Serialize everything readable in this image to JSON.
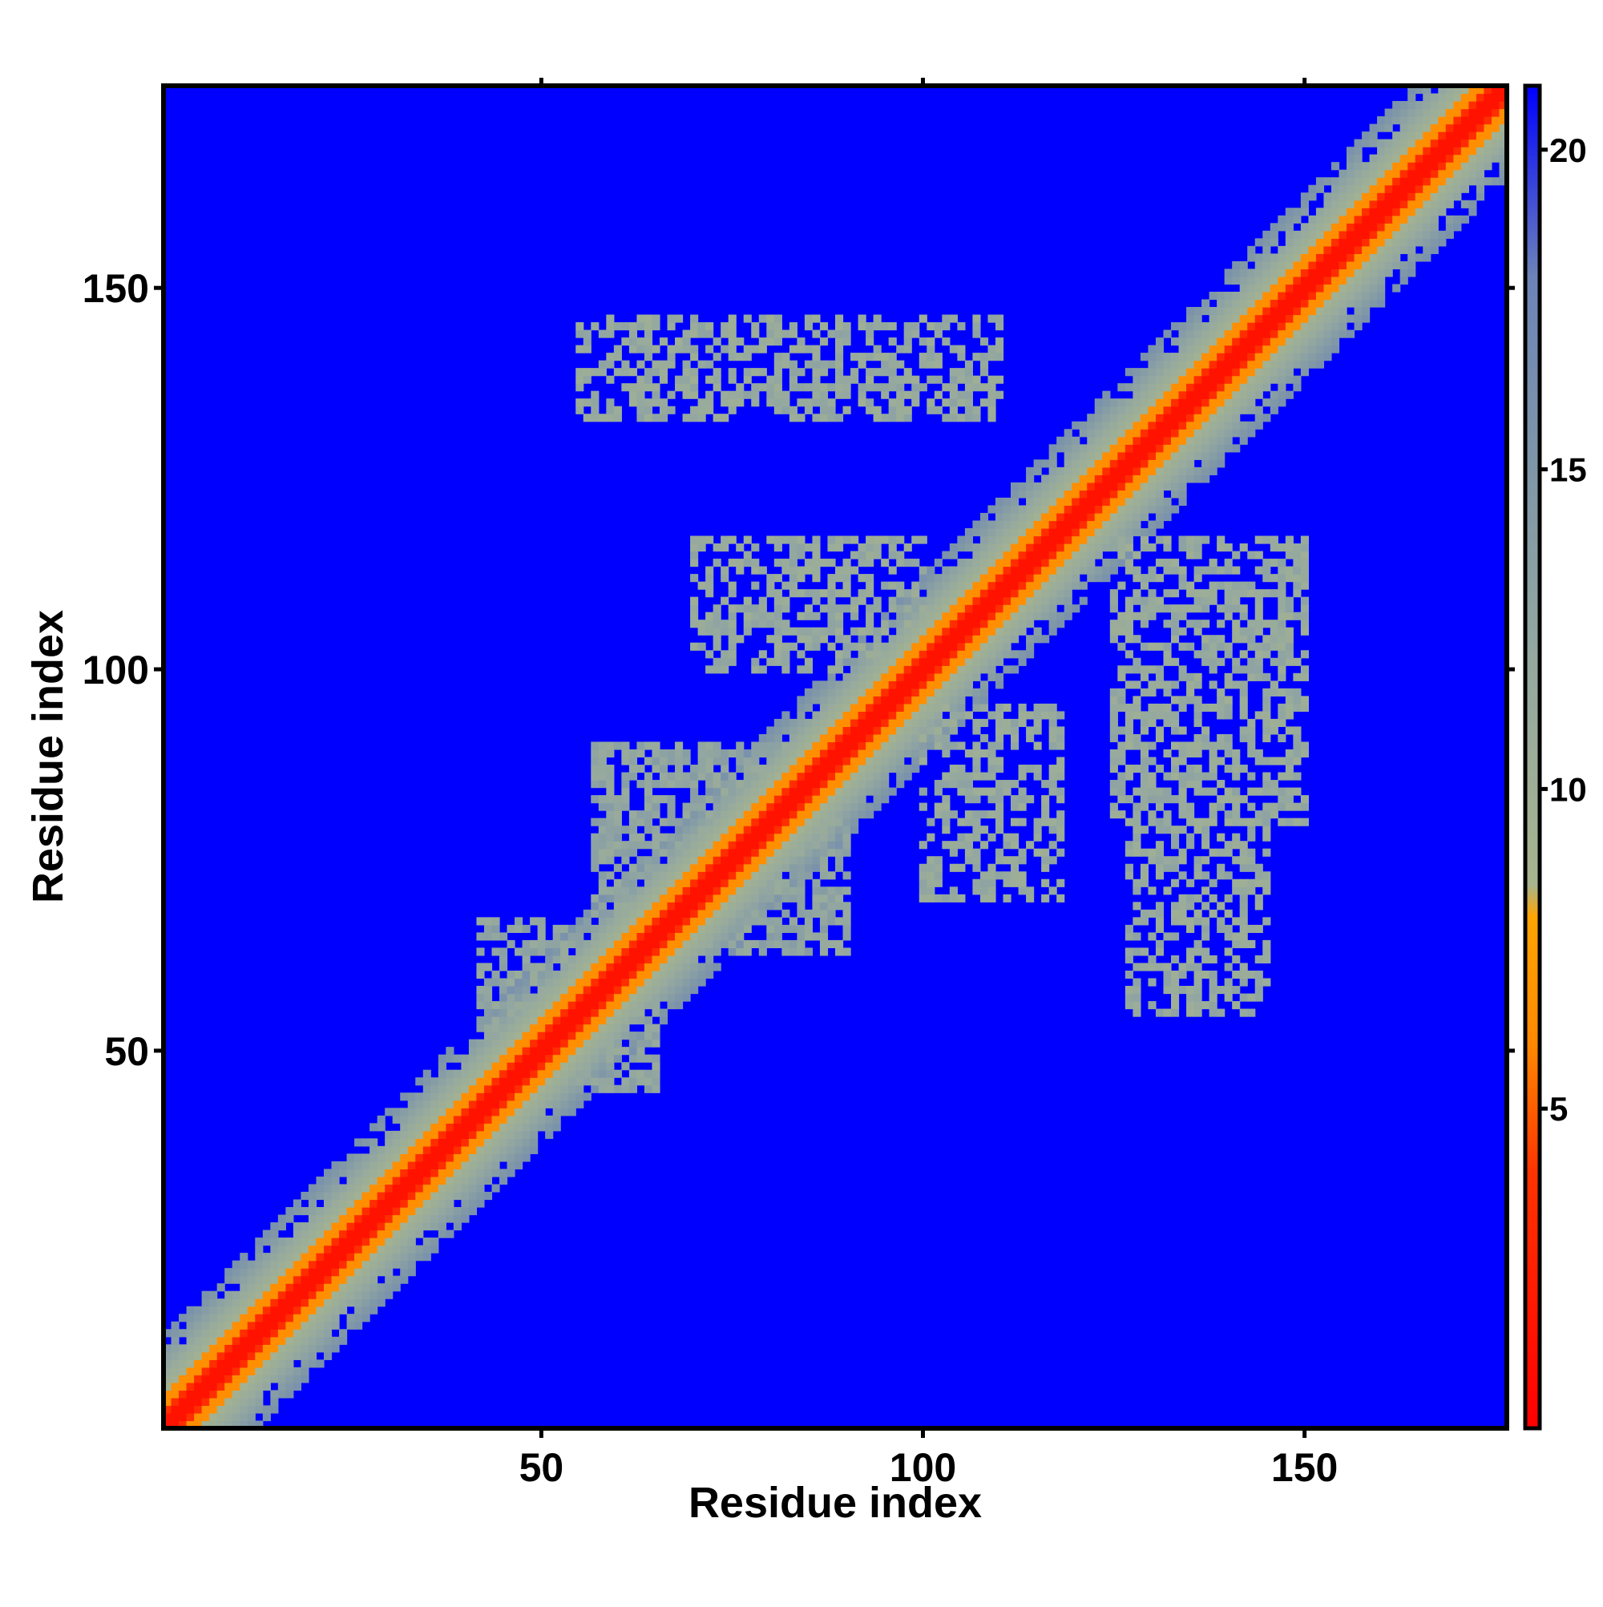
{
  "chart_data": {
    "type": "heatmap",
    "title": "",
    "xlabel": "Residue index",
    "ylabel": "Residue index",
    "n_residues": 176,
    "xlim": [
      1,
      176
    ],
    "ylim": [
      1,
      176
    ],
    "x_ticks": [
      50,
      100,
      150
    ],
    "y_ticks": [
      50,
      100,
      150
    ],
    "x_tick_labels": [
      "50",
      "100",
      "150"
    ],
    "y_tick_labels": [
      "50",
      "100",
      "150"
    ],
    "grid": false,
    "colorbar": {
      "placement": "right",
      "range": [
        0,
        21
      ],
      "ticks": [
        5,
        10,
        15,
        20
      ],
      "tick_labels": [
        "5",
        "10",
        "15",
        "20"
      ],
      "stops": [
        {
          "value": 0,
          "color": "#ff0000"
        },
        {
          "value": 4,
          "color": "#ff3300"
        },
        {
          "value": 6,
          "color": "#ff8800"
        },
        {
          "value": 8,
          "color": "#ffa500"
        },
        {
          "value": 8.5,
          "color": "#a7b48e"
        },
        {
          "value": 12,
          "color": "#94a8a0"
        },
        {
          "value": 15,
          "color": "#7f96a8"
        },
        {
          "value": 18,
          "color": "#6d84b8"
        },
        {
          "value": 21,
          "color": "#0000ff"
        }
      ]
    },
    "background_value": 21,
    "diagonal_band": {
      "description_values": "distance ~0-4 on diagonal, 5-8 adjacent, 9-16 for |i-j| up to ~12",
      "width": 12
    },
    "contact_regions": [
      {
        "x_range": [
          55,
          110
        ],
        "y_range": [
          133,
          146
        ],
        "value": 11,
        "density": 0.55
      },
      {
        "x_range": [
          70,
          100
        ],
        "y_range": [
          100,
          117
        ],
        "value": 11,
        "density": 0.55
      },
      {
        "x_range": [
          100,
          118
        ],
        "y_range": [
          70,
          95
        ],
        "value": 11,
        "density": 0.5
      },
      {
        "x_range": [
          125,
          150
        ],
        "y_range": [
          80,
          117
        ],
        "value": 11,
        "density": 0.55
      },
      {
        "x_range": [
          127,
          145
        ],
        "y_range": [
          55,
          80
        ],
        "value": 11,
        "density": 0.5
      },
      {
        "x_range": [
          57,
          90
        ],
        "y_range": [
          63,
          90
        ],
        "value": 12,
        "density": 0.65
      },
      {
        "x_range": [
          42,
          65
        ],
        "y_range": [
          45,
          67
        ],
        "value": 12,
        "density": 0.6
      }
    ],
    "colors": {
      "background": "#0000ff",
      "frame": "#000000"
    }
  }
}
